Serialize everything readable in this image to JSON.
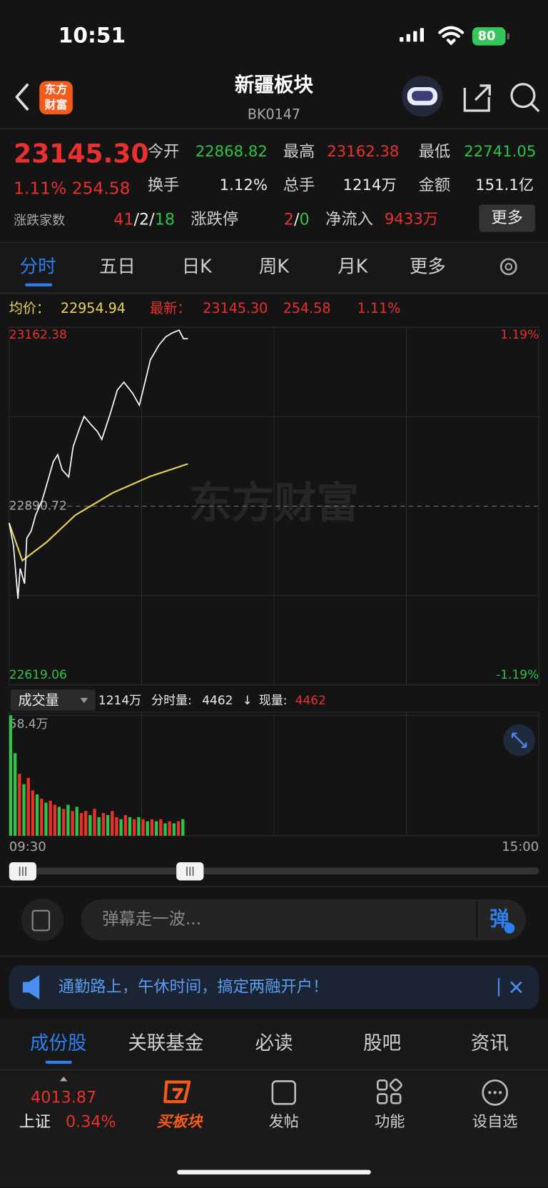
{
  "status_bar": {
    "time": "10:51",
    "battery": "80"
  },
  "header": {
    "logo_line1": "东方",
    "logo_line2": "财富",
    "title": "新疆板块",
    "code": "BK0147"
  },
  "quote": {
    "price": "23145.30",
    "change_pct": "1.11%",
    "change": "254.58",
    "fields": [
      {
        "label": "今开",
        "value": "22868.82",
        "color": "#2fc24a"
      },
      {
        "label": "最高",
        "value": "23162.38",
        "color": "#e8312f"
      },
      {
        "label": "最低",
        "value": "22741.05",
        "color": "#2fc24a"
      },
      {
        "label": "换手",
        "value": "1.12%",
        "color": "#eeeeee"
      },
      {
        "label": "总手",
        "value": "1214万",
        "color": "#eeeeee"
      },
      {
        "label": "金额",
        "value": "151.1亿",
        "color": "#eeeeee"
      }
    ],
    "breadth": {
      "label": "涨跌家数",
      "up": "41",
      "flat": "2",
      "down": "18",
      "separator": "/"
    },
    "limit": {
      "label": "涨跌停",
      "up": "2",
      "down": "0",
      "separator": "/"
    },
    "net_inflow": {
      "label": "净流入",
      "value": "9433万"
    },
    "more_button": "更多"
  },
  "tabs": {
    "items": [
      "分时",
      "五日",
      "日K",
      "周K",
      "月K",
      "更多"
    ],
    "active": 0
  },
  "info_line": {
    "avg_label": "均价：",
    "avg_value": "22954.94",
    "latest_label": "最新：",
    "latest_price": "23145.30",
    "latest_change": "254.58",
    "latest_pct": "1.11%"
  },
  "intraday_chart": {
    "type": "line",
    "watermark": "东方财富",
    "xlim": [
      0,
      240
    ],
    "xticks": [
      {
        "value": 0,
        "label": "09:30"
      },
      {
        "value": 240,
        "label": "15:00"
      }
    ],
    "ylim": [
      22619.06,
      23162.38
    ],
    "yticks": [
      22619.06,
      22890.72,
      23162.38
    ],
    "right_labels": [
      "-1.19%",
      "1.19%"
    ],
    "price": {
      "color": "#ffffff",
      "x": [
        0,
        2,
        4,
        5,
        7,
        8,
        10,
        12,
        15,
        17,
        20,
        22,
        24,
        27,
        29,
        32,
        34,
        37,
        40,
        42,
        46,
        49,
        52,
        56,
        59,
        62,
        64,
        68,
        71,
        74,
        77,
        79,
        81
      ],
      "values": [
        22865,
        22830,
        22750,
        22796,
        22773,
        22842,
        22853,
        22877,
        22900,
        22923,
        22958,
        22969,
        22946,
        22935,
        22981,
        23010,
        23027,
        23015,
        23004,
        22992,
        23033,
        23067,
        23079,
        23062,
        23044,
        23085,
        23113,
        23136,
        23148,
        23154,
        23158,
        23145,
        23145.3
      ]
    },
    "average": {
      "color": "#e6d35a",
      "x": [
        0,
        6,
        17,
        30,
        47,
        64,
        81
      ],
      "values": [
        22865,
        22808,
        22836,
        22877,
        22911,
        22936,
        22954.94
      ]
    }
  },
  "volume_header": {
    "dropdown": "成交量",
    "total": "1214万",
    "minute_label": "分时量:",
    "minute_value": "4462",
    "arrow": "↓",
    "current_label": "现量:",
    "current_value": "4462"
  },
  "volume_chart": {
    "type": "bar",
    "ylim": [
      0,
      58.4
    ],
    "yticks": [
      {
        "value": 58.4,
        "label": "58.4万"
      }
    ],
    "x": [
      0,
      2,
      4,
      6,
      8,
      10,
      12,
      14,
      16,
      18,
      20,
      22,
      24,
      26,
      28,
      30,
      32,
      34,
      36,
      38,
      40,
      42,
      44,
      46,
      48,
      50,
      52,
      54,
      56,
      58,
      60,
      62,
      64,
      66,
      68,
      70,
      72,
      74,
      76,
      78
    ],
    "values": [
      58.4,
      40,
      30,
      25,
      28,
      22,
      20,
      18,
      16,
      17,
      15,
      14,
      13,
      15,
      12,
      14,
      11,
      12,
      10,
      13,
      9,
      11,
      10,
      12,
      9,
      8,
      10,
      9,
      8,
      9,
      8,
      7,
      8,
      7,
      8,
      6,
      7,
      6,
      7,
      8
    ],
    "colors": [
      "#2fc24a",
      "#2fc24a",
      "#e8312f",
      "#2fc24a",
      "#e8312f",
      "#e8312f",
      "#2fc24a",
      "#e8312f",
      "#2fc24a",
      "#e8312f",
      "#e8312f",
      "#2fc24a",
      "#e8312f",
      "#2fc24a",
      "#e8312f",
      "#2fc24a",
      "#e8312f",
      "#e8312f",
      "#2fc24a",
      "#e8312f",
      "#2fc24a",
      "#e8312f",
      "#2fc24a",
      "#e8312f",
      "#e8312f",
      "#2fc24a",
      "#e8312f",
      "#2fc24a",
      "#e8312f",
      "#2fc24a",
      "#e8312f",
      "#2fc24a",
      "#e8312f",
      "#2fc24a",
      "#e8312f",
      "#2fc24a",
      "#e8312f",
      "#2fc24a",
      "#e8312f",
      "#2fc24a"
    ]
  },
  "danmaku": {
    "placeholder": "弹幕走一波...",
    "button": "弹"
  },
  "banner": {
    "text": "通勤路上，午休时间，搞定两融开户！"
  },
  "bottom_tabs": {
    "items": [
      "成份股",
      "关联基金",
      "必读",
      "股吧",
      "资讯"
    ],
    "active": 0
  },
  "bottom_nav": {
    "index_value": "4013.87",
    "index_name": "上证",
    "index_pct": "0.34%",
    "items": [
      "买板块",
      "发帖",
      "功能",
      "设自选"
    ]
  }
}
